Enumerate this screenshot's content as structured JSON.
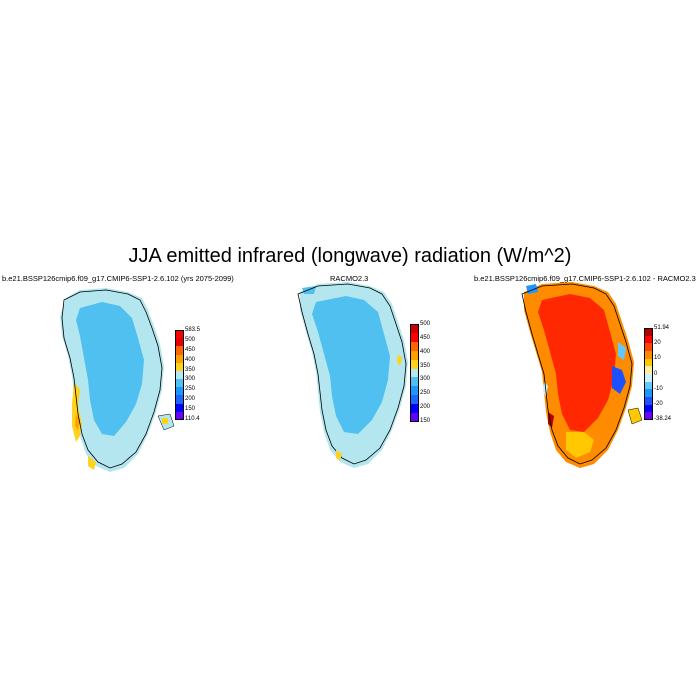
{
  "figure": {
    "title": "JJA emitted infrared (longwave) radiation (W/m^2)"
  },
  "panels": [
    {
      "title": "b.e21.BSSP126cmip6.f09_g17.CMIP6-SSP1-2.6.102 (yrs 2075-2099)",
      "colorbar": {
        "colors": [
          "#ff0000",
          "#e60000",
          "#ff6600",
          "#ffa000",
          "#ffd21e",
          "#b4e6f0",
          "#50c0f0",
          "#1e96ff",
          "#1e64ff",
          "#0000ff",
          "#6600ff"
        ],
        "labels": [
          "583.5",
          "500",
          "450",
          "400",
          "350",
          "300",
          "250",
          "200",
          "150",
          "110.4"
        ],
        "extend_min": false
      }
    },
    {
      "title": "RACMO2.3",
      "colorbar": {
        "colors": [
          "#cc0000",
          "#ff0000",
          "#ff6600",
          "#ffa000",
          "#ffd21e",
          "#b4e6f0",
          "#50c0f0",
          "#1e96ff",
          "#1e64ff",
          "#0000ff",
          "#6600ff"
        ],
        "labels": [
          "500",
          "450",
          "400",
          "350",
          "300",
          "250",
          "200",
          "150"
        ],
        "extend_min": true
      }
    },
    {
      "title": "b.e21.BSSP126cmip6.f09_g17.CMIP6-SSP1-2.6.102 - RACMO2.3",
      "colorbar": {
        "colors": [
          "#b40000",
          "#ff0000",
          "#ff4500",
          "#ff8c00",
          "#ffc800",
          "#fff0a0",
          "#c8f0ff",
          "#64c8ff",
          "#1e96ff",
          "#1e50ff",
          "#0000ff",
          "#6a00ff"
        ],
        "labels": [
          "51.94",
          "20",
          "10",
          "0",
          "-10",
          "-20",
          "-38.24"
        ],
        "extend_min": false
      }
    }
  ]
}
